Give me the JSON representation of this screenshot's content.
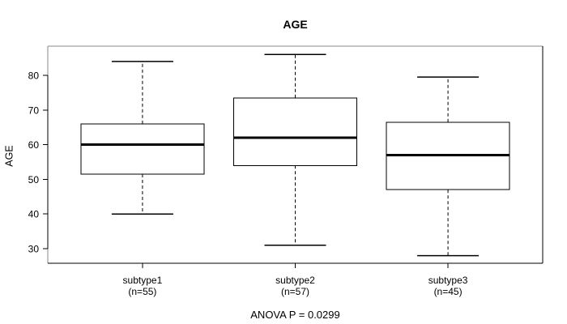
{
  "chart_data": {
    "type": "boxplot",
    "title": "AGE",
    "ylabel": "AGE",
    "xlabel": "",
    "ylim": [
      25.8,
      88.4
    ],
    "yticks": [
      30,
      40,
      50,
      60,
      70,
      80
    ],
    "categories": [
      "subtype1",
      "subtype2",
      "subtype3"
    ],
    "category_sublabels": [
      "(n=55)",
      "(n=57)",
      "(n=45)"
    ],
    "series": [
      {
        "name": "subtype1",
        "n": 55,
        "whisker_low": 40,
        "q1": 51.5,
        "median": 60,
        "q3": 66,
        "whisker_high": 84
      },
      {
        "name": "subtype2",
        "n": 57,
        "whisker_low": 31,
        "q1": 54,
        "median": 62,
        "q3": 73.5,
        "whisker_high": 86
      },
      {
        "name": "subtype3",
        "n": 45,
        "whisker_low": 28,
        "q1": 47,
        "median": 57,
        "q3": 66.5,
        "whisker_high": 79.5
      }
    ],
    "annotation": "ANOVA P = 0.0299",
    "legend": "none",
    "grid": false,
    "colors": {
      "stroke": "#000000",
      "box_fill": "#ffffff",
      "frame_light": "#8a8a8a",
      "text": "#000000",
      "background": "#ffffff"
    }
  }
}
